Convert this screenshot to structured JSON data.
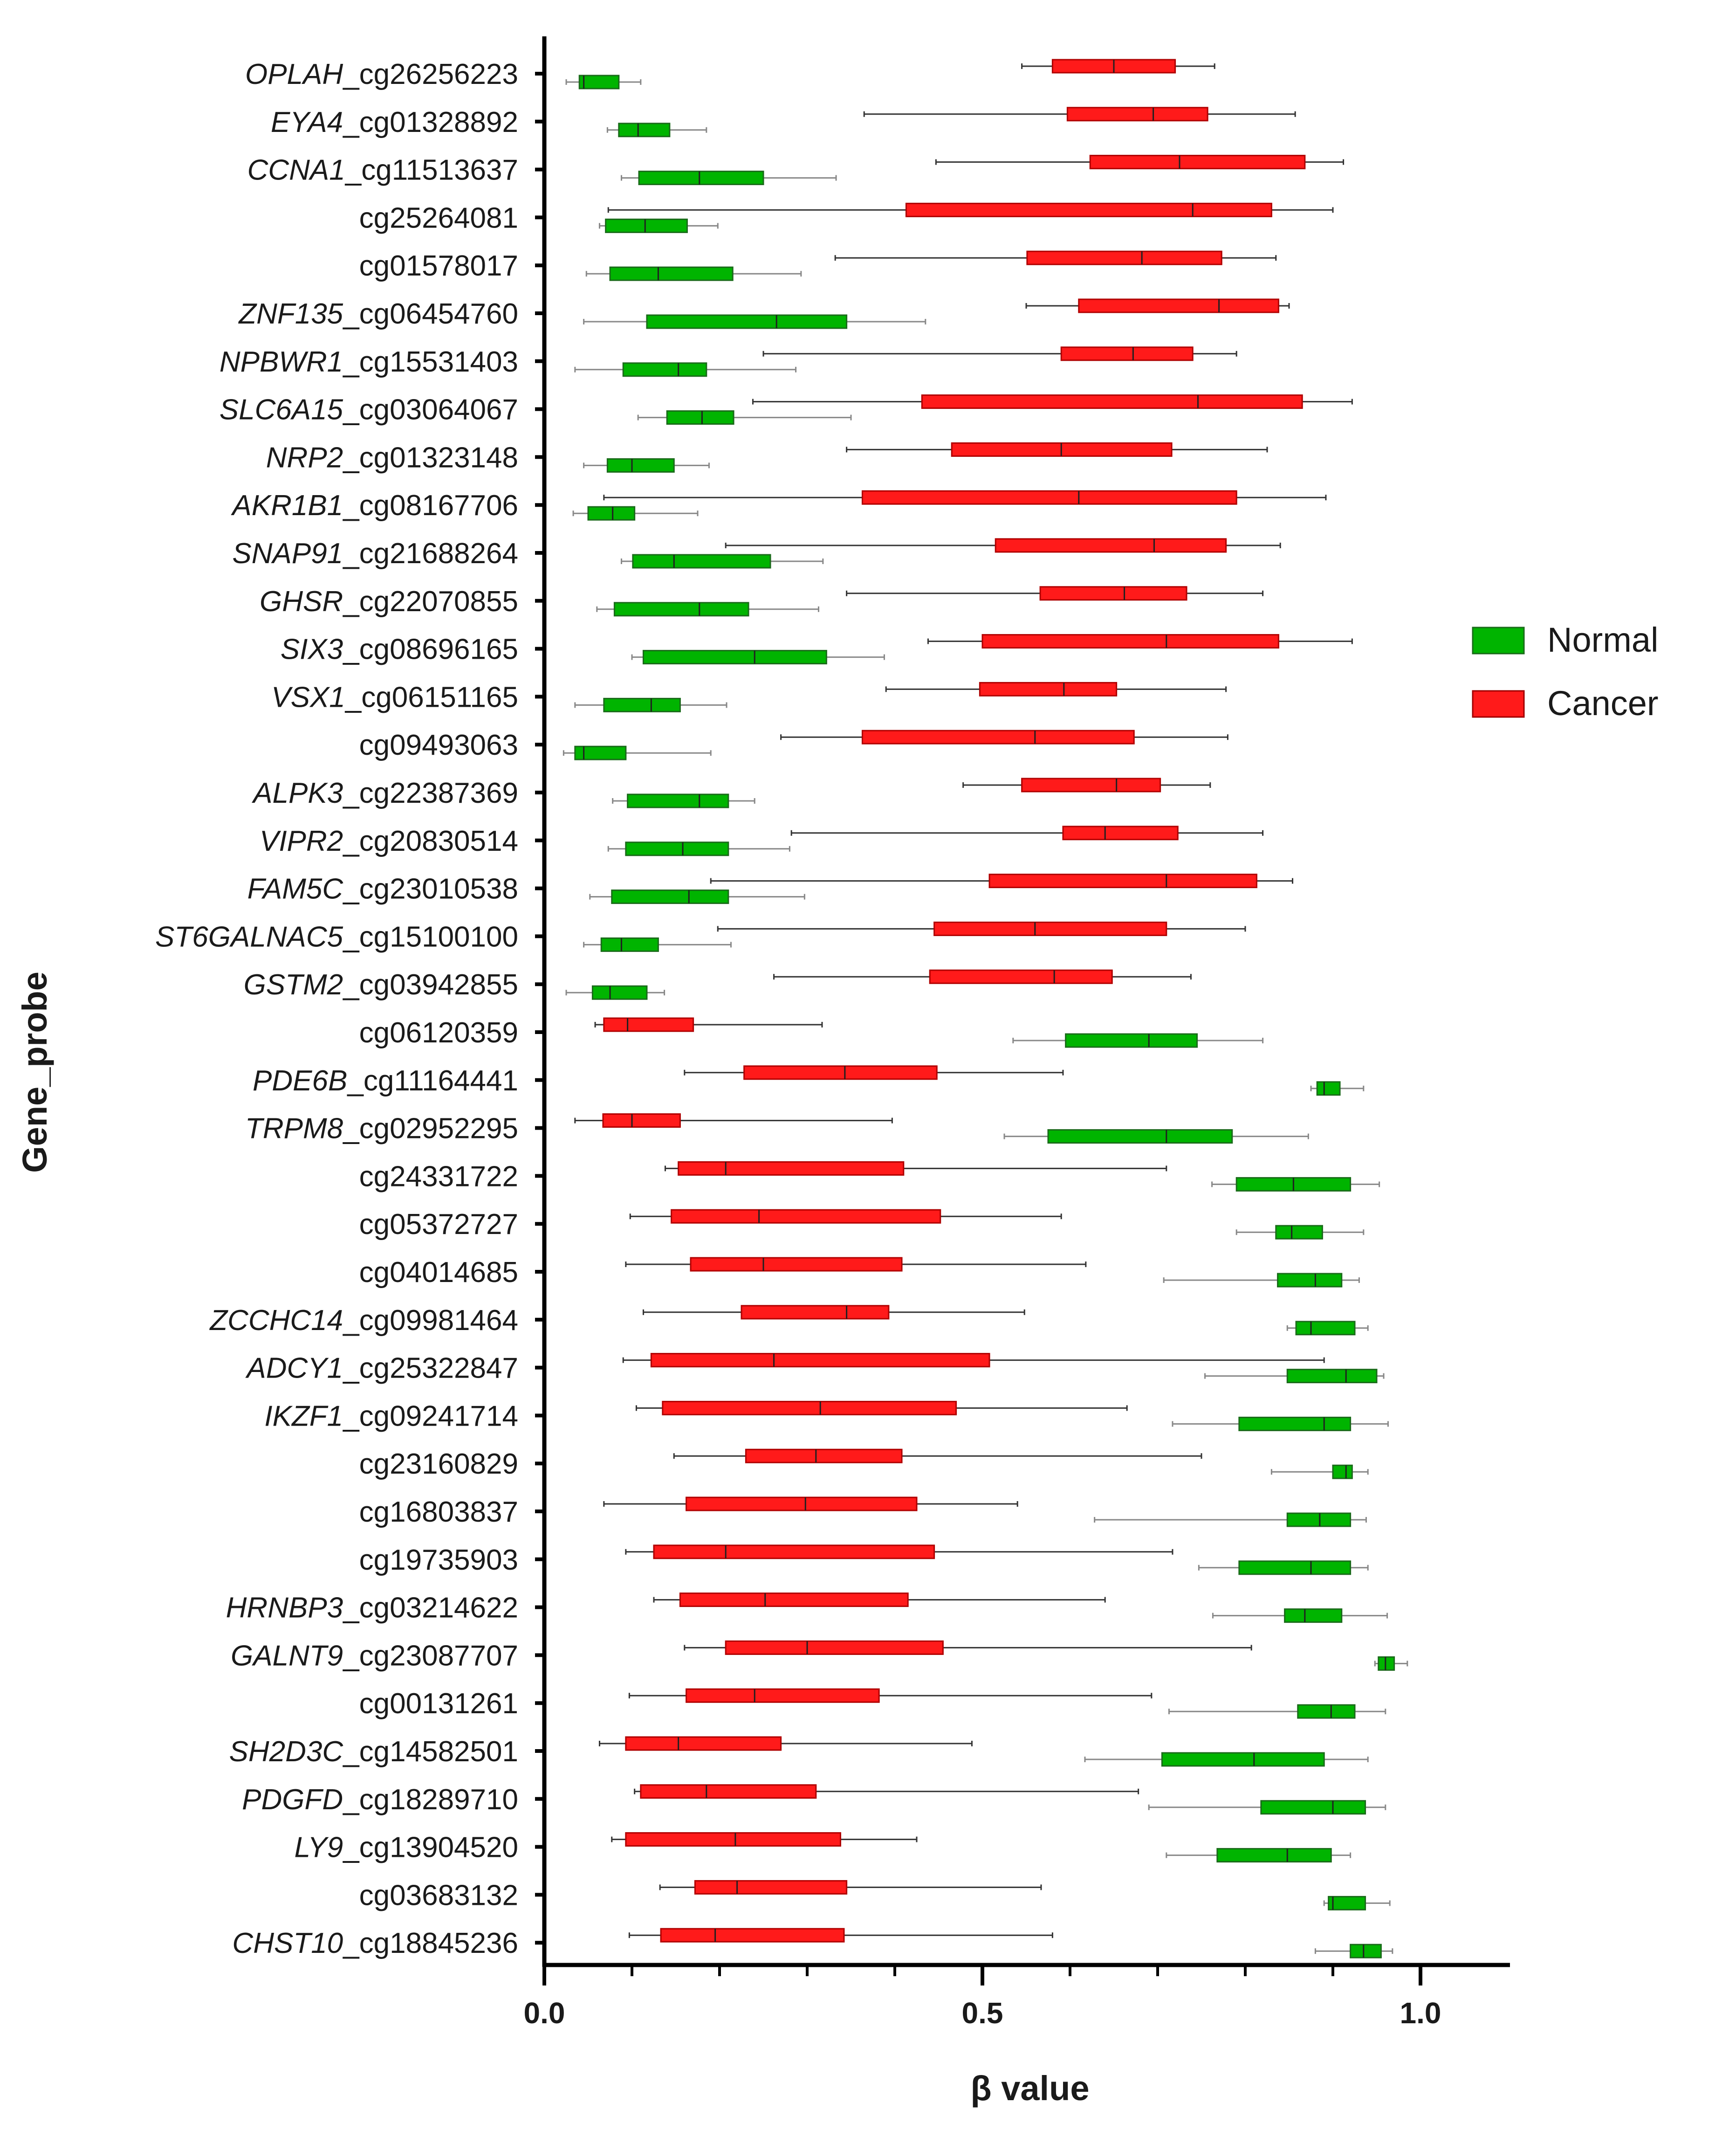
{
  "chart_data": {
    "type": "boxplot-horizontal",
    "title": "",
    "xlabel": "β value",
    "ylabel": "Gene_probe",
    "xlim": [
      0.0,
      1.1
    ],
    "xticks": [
      0.0,
      0.5,
      1.0
    ],
    "xtick_labels": [
      "0.0",
      "0.5",
      "1.0"
    ],
    "legend": {
      "position": "right",
      "entries": [
        {
          "name": "Normal",
          "color": "#00b400"
        },
        {
          "name": "Cancer",
          "color": "#ff1a1a"
        }
      ]
    },
    "series_colors": {
      "normal": "#00b400",
      "cancer": "#ff1a1a",
      "whisker_cancer": "#333333",
      "whisker_normal": "#888888"
    },
    "rows": [
      {
        "gene": "OPLAH",
        "probe": "_cg26256223",
        "cancer": [
          0.545,
          0.58,
          0.65,
          0.72,
          0.765
        ],
        "normal": [
          0.025,
          0.04,
          0.045,
          0.085,
          0.11
        ]
      },
      {
        "gene": "EYA4",
        "probe": "_cg01328892",
        "cancer": [
          0.365,
          0.597,
          0.695,
          0.757,
          0.857
        ],
        "normal": [
          0.072,
          0.085,
          0.107,
          0.143,
          0.185
        ]
      },
      {
        "gene": "CCNA1",
        "probe": "_cg11513637",
        "cancer": [
          0.447,
          0.623,
          0.725,
          0.868,
          0.912
        ],
        "normal": [
          0.088,
          0.108,
          0.177,
          0.25,
          0.333
        ]
      },
      {
        "gene": "",
        "probe": "cg25264081",
        "cancer": [
          0.073,
          0.413,
          0.74,
          0.83,
          0.9
        ],
        "normal": [
          0.063,
          0.07,
          0.115,
          0.163,
          0.198
        ]
      },
      {
        "gene": "",
        "probe": "cg01578017",
        "cancer": [
          0.332,
          0.551,
          0.682,
          0.773,
          0.835
        ],
        "normal": [
          0.048,
          0.075,
          0.13,
          0.215,
          0.293
        ]
      },
      {
        "gene": "ZNF135",
        "probe": "_cg06454760",
        "cancer": [
          0.55,
          0.61,
          0.77,
          0.838,
          0.85
        ],
        "normal": [
          0.045,
          0.117,
          0.265,
          0.345,
          0.435
        ]
      },
      {
        "gene": "NPBWR1",
        "probe": "_cg15531403",
        "cancer": [
          0.25,
          0.59,
          0.672,
          0.74,
          0.79
        ],
        "normal": [
          0.035,
          0.09,
          0.153,
          0.185,
          0.287
        ]
      },
      {
        "gene": "SLC6A15",
        "probe": "_cg03064067",
        "cancer": [
          0.238,
          0.431,
          0.746,
          0.865,
          0.922
        ],
        "normal": [
          0.107,
          0.14,
          0.18,
          0.216,
          0.35
        ]
      },
      {
        "gene": "NRP2",
        "probe": "_cg01323148",
        "cancer": [
          0.345,
          0.465,
          0.59,
          0.716,
          0.825
        ],
        "normal": [
          0.045,
          0.072,
          0.1,
          0.148,
          0.188
        ]
      },
      {
        "gene": "AKR1B1",
        "probe": "_cg08167706",
        "cancer": [
          0.068,
          0.363,
          0.61,
          0.79,
          0.892
        ],
        "normal": [
          0.033,
          0.05,
          0.078,
          0.103,
          0.175
        ]
      },
      {
        "gene": "SNAP91",
        "probe": "_cg21688264",
        "cancer": [
          0.207,
          0.515,
          0.696,
          0.778,
          0.84
        ],
        "normal": [
          0.088,
          0.101,
          0.148,
          0.258,
          0.318
        ]
      },
      {
        "gene": "GHSR",
        "probe": "_cg22070855",
        "cancer": [
          0.345,
          0.566,
          0.662,
          0.733,
          0.82
        ],
        "normal": [
          0.06,
          0.08,
          0.177,
          0.233,
          0.313
        ]
      },
      {
        "gene": "SIX3",
        "probe": "_cg08696165",
        "cancer": [
          0.438,
          0.5,
          0.71,
          0.838,
          0.922
        ],
        "normal": [
          0.1,
          0.113,
          0.24,
          0.322,
          0.388
        ]
      },
      {
        "gene": "VSX1",
        "probe": "_cg06151165",
        "cancer": [
          0.39,
          0.497,
          0.593,
          0.653,
          0.778
        ],
        "normal": [
          0.035,
          0.068,
          0.122,
          0.155,
          0.208
        ]
      },
      {
        "gene": "",
        "probe": "cg09493063",
        "cancer": [
          0.27,
          0.363,
          0.56,
          0.673,
          0.78
        ],
        "normal": [
          0.022,
          0.035,
          0.045,
          0.093,
          0.19
        ]
      },
      {
        "gene": "ALPK3",
        "probe": "_cg22387369",
        "cancer": [
          0.478,
          0.545,
          0.653,
          0.703,
          0.76
        ],
        "normal": [
          0.078,
          0.095,
          0.177,
          0.21,
          0.24
        ]
      },
      {
        "gene": "VIPR2",
        "probe": "_cg20830514",
        "cancer": [
          0.282,
          0.592,
          0.64,
          0.723,
          0.82
        ],
        "normal": [
          0.073,
          0.093,
          0.158,
          0.21,
          0.28
        ]
      },
      {
        "gene": "FAM5C",
        "probe": "_cg23010538",
        "cancer": [
          0.19,
          0.508,
          0.71,
          0.813,
          0.854
        ],
        "normal": [
          0.052,
          0.077,
          0.165,
          0.21,
          0.297
        ]
      },
      {
        "gene": "ST6GALNAC5",
        "probe": "_cg15100100",
        "cancer": [
          0.198,
          0.445,
          0.56,
          0.71,
          0.8
        ],
        "normal": [
          0.045,
          0.065,
          0.088,
          0.13,
          0.213
        ]
      },
      {
        "gene": "GSTM2",
        "probe": "_cg03942855",
        "cancer": [
          0.262,
          0.44,
          0.582,
          0.648,
          0.738
        ],
        "normal": [
          0.025,
          0.055,
          0.075,
          0.117,
          0.137
        ]
      },
      {
        "gene": "",
        "probe": "cg06120359",
        "cancer": [
          0.058,
          0.068,
          0.095,
          0.17,
          0.317
        ],
        "normal": [
          0.535,
          0.595,
          0.69,
          0.745,
          0.82
        ]
      },
      {
        "gene": "PDE6B",
        "probe": "_cg11164441",
        "cancer": [
          0.16,
          0.228,
          0.343,
          0.448,
          0.592
        ],
        "normal": [
          0.875,
          0.882,
          0.89,
          0.908,
          0.935
        ]
      },
      {
        "gene": "TRPM8",
        "probe": "_cg02952295",
        "cancer": [
          0.035,
          0.067,
          0.1,
          0.155,
          0.397
        ],
        "normal": [
          0.525,
          0.575,
          0.71,
          0.785,
          0.872
        ]
      },
      {
        "gene": "",
        "probe": "cg24331722",
        "cancer": [
          0.138,
          0.153,
          0.207,
          0.41,
          0.71
        ],
        "normal": [
          0.762,
          0.79,
          0.855,
          0.92,
          0.953
        ]
      },
      {
        "gene": "",
        "probe": "cg05372727",
        "cancer": [
          0.098,
          0.145,
          0.245,
          0.452,
          0.59
        ],
        "normal": [
          0.79,
          0.835,
          0.853,
          0.888,
          0.935
        ]
      },
      {
        "gene": "",
        "probe": "cg04014685",
        "cancer": [
          0.093,
          0.167,
          0.25,
          0.408,
          0.618
        ],
        "normal": [
          0.707,
          0.837,
          0.88,
          0.91,
          0.93
        ]
      },
      {
        "gene": "ZCCHC14",
        "probe": "_cg09981464",
        "cancer": [
          0.113,
          0.225,
          0.345,
          0.393,
          0.548
        ],
        "normal": [
          0.848,
          0.858,
          0.875,
          0.925,
          0.94
        ]
      },
      {
        "gene": "ADCY1",
        "probe": "_cg25322847",
        "cancer": [
          0.09,
          0.122,
          0.262,
          0.508,
          0.89
        ],
        "normal": [
          0.754,
          0.848,
          0.915,
          0.95,
          0.958
        ]
      },
      {
        "gene": "IKZF1",
        "probe": "_cg09241714",
        "cancer": [
          0.105,
          0.135,
          0.315,
          0.47,
          0.665
        ],
        "normal": [
          0.717,
          0.793,
          0.89,
          0.92,
          0.963
        ]
      },
      {
        "gene": "",
        "probe": "cg23160829",
        "cancer": [
          0.148,
          0.23,
          0.31,
          0.408,
          0.75
        ],
        "normal": [
          0.83,
          0.9,
          0.915,
          0.922,
          0.94
        ]
      },
      {
        "gene": "",
        "probe": "cg16803837",
        "cancer": [
          0.068,
          0.162,
          0.298,
          0.425,
          0.54
        ],
        "normal": [
          0.628,
          0.848,
          0.885,
          0.92,
          0.938
        ]
      },
      {
        "gene": "",
        "probe": "cg19735903",
        "cancer": [
          0.093,
          0.125,
          0.207,
          0.445,
          0.717
        ],
        "normal": [
          0.747,
          0.793,
          0.875,
          0.92,
          0.94
        ]
      },
      {
        "gene": "HRNBP3",
        "probe": "_cg03214622",
        "cancer": [
          0.125,
          0.155,
          0.252,
          0.415,
          0.64
        ],
        "normal": [
          0.763,
          0.845,
          0.868,
          0.91,
          0.962
        ]
      },
      {
        "gene": "GALNT9",
        "probe": "_cg23087707",
        "cancer": [
          0.16,
          0.207,
          0.3,
          0.455,
          0.807
        ],
        "normal": [
          0.948,
          0.952,
          0.96,
          0.97,
          0.985
        ]
      },
      {
        "gene": "",
        "probe": "cg00131261",
        "cancer": [
          0.097,
          0.162,
          0.24,
          0.382,
          0.693
        ],
        "normal": [
          0.713,
          0.86,
          0.898,
          0.925,
          0.96
        ]
      },
      {
        "gene": "SH2D3C",
        "probe": "_cg14582501",
        "cancer": [
          0.063,
          0.093,
          0.153,
          0.27,
          0.488
        ],
        "normal": [
          0.617,
          0.705,
          0.81,
          0.89,
          0.94
        ]
      },
      {
        "gene": "PDGFD",
        "probe": "_cg18289710",
        "cancer": [
          0.103,
          0.11,
          0.185,
          0.31,
          0.678
        ],
        "normal": [
          0.69,
          0.818,
          0.9,
          0.937,
          0.96
        ]
      },
      {
        "gene": "LY9",
        "probe": "_cg13904520",
        "cancer": [
          0.077,
          0.093,
          0.218,
          0.338,
          0.425
        ],
        "normal": [
          0.71,
          0.768,
          0.848,
          0.898,
          0.92
        ]
      },
      {
        "gene": "",
        "probe": "cg03683132",
        "cancer": [
          0.132,
          0.172,
          0.22,
          0.345,
          0.567
        ],
        "normal": [
          0.89,
          0.895,
          0.9,
          0.937,
          0.965
        ]
      },
      {
        "gene": "CHST10",
        "probe": "_cg18845236",
        "cancer": [
          0.097,
          0.133,
          0.195,
          0.342,
          0.58
        ],
        "normal": [
          0.88,
          0.92,
          0.935,
          0.955,
          0.968
        ]
      }
    ]
  }
}
